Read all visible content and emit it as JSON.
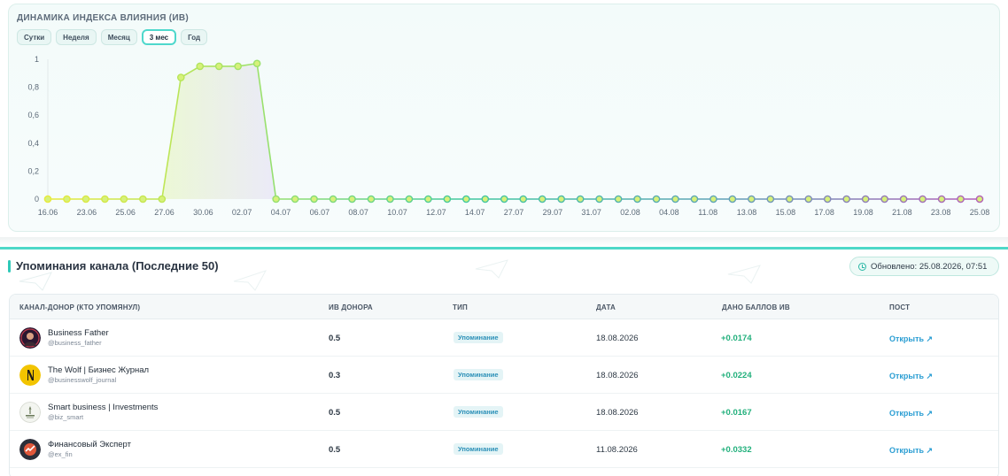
{
  "chart": {
    "title": "ДИНАМИКА ИНДЕКСА ВЛИЯНИЯ (ИВ)",
    "periods": [
      "Сутки",
      "Неделя",
      "Месяц",
      "3 мес",
      "Год"
    ],
    "active_period": "3 мес"
  },
  "chart_data": {
    "type": "line",
    "title": "ДИНАМИКА ИНДЕКСА ВЛИЯНИЯ (ИВ)",
    "xlabel": "",
    "ylabel": "",
    "ylim": [
      0,
      1
    ],
    "y_ticks": [
      "0",
      "0,2",
      "0,4",
      "0,6",
      "0,8",
      "1"
    ],
    "x_tick_labels": [
      "16.06",
      "23.06",
      "25.06",
      "27.06",
      "30.06",
      "02.07",
      "04.07",
      "06.07",
      "08.07",
      "10.07",
      "12.07",
      "14.07",
      "27.07",
      "29.07",
      "31.07",
      "02.08",
      "04.08",
      "11.08",
      "13.08",
      "15.08",
      "17.08",
      "19.08",
      "21.08",
      "23.08",
      "25.08"
    ],
    "values": [
      0,
      0,
      0,
      0,
      0,
      0,
      0,
      0.87,
      0.95,
      0.95,
      0.95,
      0.97,
      0,
      0,
      0,
      0,
      0,
      0,
      0,
      0,
      0,
      0,
      0,
      0,
      0,
      0,
      0,
      0,
      0,
      0,
      0,
      0,
      0,
      0,
      0,
      0,
      0,
      0,
      0,
      0,
      0,
      0,
      0,
      0,
      0,
      0,
      0,
      0,
      0,
      0
    ],
    "grid": false
  },
  "mentions": {
    "title": "Упоминания канала (Последние 50)",
    "updated": "Обновлено: 25.08.2026, 07:51",
    "columns": [
      "КАНАЛ-ДОНОР (КТО УПОМЯНУЛ)",
      "ИВ ДОНОРА",
      "ТИП",
      "ДАТА",
      "ДАНО БАЛЛОВ ИВ",
      "ПОСТ"
    ],
    "rows": [
      {
        "name": "Business Father",
        "handle": "@business_father",
        "iv": "0.5",
        "type": "Упоминание",
        "date": "18.08.2026",
        "points": "+0.0174",
        "post": "Открыть ↗"
      },
      {
        "name": "The Wolf | Бизнес Журнал",
        "handle": "@businesswolf_journal",
        "iv": "0.3",
        "type": "Упоминание",
        "date": "18.08.2026",
        "points": "+0.0224",
        "post": "Открыть ↗"
      },
      {
        "name": "Smart business | Investments",
        "handle": "@biz_smart",
        "iv": "0.5",
        "type": "Упоминание",
        "date": "18.08.2026",
        "points": "+0.0167",
        "post": "Открыть ↗"
      },
      {
        "name": "Финансовый Эксперт",
        "handle": "@ex_fin",
        "iv": "0.5",
        "type": "Упоминание",
        "date": "11.08.2026",
        "points": "+0.0332",
        "post": "Открыть ↗"
      }
    ],
    "avatar_colors": [
      "#3a1f2a",
      "#f2c400",
      "#f3f5f0",
      "#2c2f3a"
    ]
  },
  "colors": {
    "accent": "#4fd8c8",
    "positive": "#22b07c",
    "link": "#2b9ed3"
  }
}
